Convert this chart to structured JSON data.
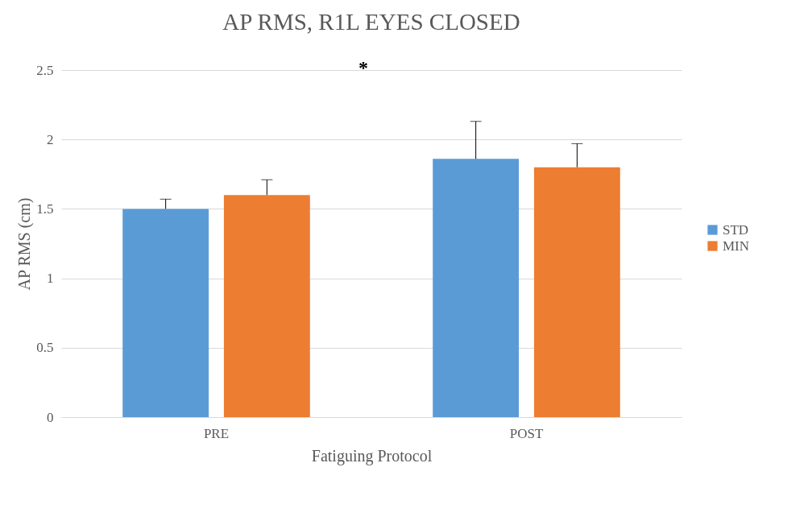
{
  "chart_data": {
    "type": "bar",
    "title": "AP RMS, R1L EYES CLOSED",
    "xlabel": "Fatiguing Protocol",
    "ylabel": "AP RMS (cm)",
    "categories": [
      "PRE",
      "POST"
    ],
    "series": [
      {
        "name": "STD",
        "color": "#5b9bd5",
        "values": [
          1.5,
          1.86
        ],
        "errors": [
          [
            1.5,
            1.57
          ],
          [
            1.86,
            2.13
          ]
        ]
      },
      {
        "name": "MIN",
        "color": "#ed7d31",
        "values": [
          1.6,
          1.8
        ],
        "errors": [
          [
            1.6,
            1.71
          ],
          [
            1.8,
            1.97
          ]
        ]
      }
    ],
    "ylim": [
      0,
      2.5
    ],
    "yticks": [
      0,
      0.5,
      1,
      1.5,
      2,
      2.5
    ],
    "grid": "y",
    "legend": "right",
    "annotations": [
      "*"
    ]
  }
}
